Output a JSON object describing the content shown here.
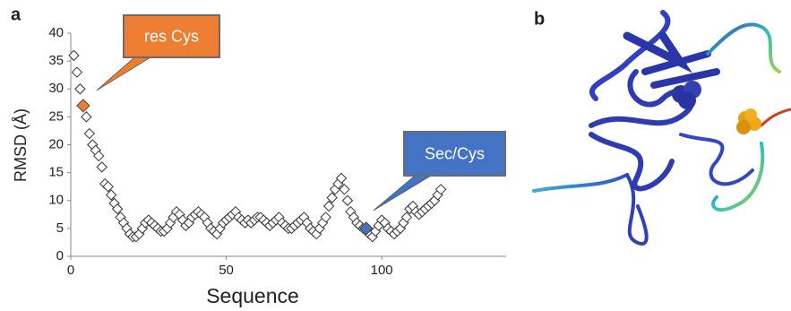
{
  "chart_data": {
    "type": "scatter",
    "y_label": "RMSD (Å)",
    "x_label": "Sequence",
    "x": [
      1,
      2,
      3,
      4,
      5,
      6,
      7,
      8,
      9,
      10,
      11,
      12,
      13,
      14,
      15,
      16,
      17,
      18,
      19,
      20,
      21,
      22,
      23,
      24,
      25,
      26,
      27,
      28,
      29,
      30,
      31,
      32,
      33,
      34,
      35,
      36,
      37,
      38,
      39,
      40,
      41,
      42,
      43,
      44,
      45,
      46,
      47,
      48,
      49,
      50,
      51,
      52,
      53,
      54,
      55,
      56,
      57,
      58,
      59,
      60,
      61,
      62,
      63,
      64,
      65,
      66,
      67,
      68,
      69,
      70,
      71,
      72,
      73,
      74,
      75,
      76,
      77,
      78,
      79,
      80,
      81,
      82,
      83,
      84,
      85,
      86,
      87,
      88,
      89,
      90,
      91,
      92,
      93,
      94,
      95,
      96,
      97,
      98,
      99,
      100,
      101,
      102,
      103,
      104,
      105,
      106,
      107,
      108,
      109,
      110,
      111,
      112,
      113,
      114,
      115,
      116,
      117,
      118,
      119
    ],
    "values": [
      36,
      33,
      30,
      27,
      25,
      22,
      20,
      19,
      18,
      16,
      13,
      12.5,
      11,
      9.5,
      8.5,
      7,
      6,
      5,
      4,
      3.5,
      3.5,
      4,
      5,
      6,
      6.5,
      6,
      5.5,
      5,
      4.5,
      4.5,
      5,
      6,
      7,
      8,
      7.5,
      6.5,
      5.5,
      6,
      7,
      7.5,
      8,
      7.5,
      7,
      6,
      5,
      4.5,
      4,
      5,
      6,
      6.5,
      7,
      7.5,
      8,
      7,
      6.5,
      6,
      6.5,
      6,
      6.5,
      7,
      7,
      6.5,
      6,
      5.5,
      6,
      6.5,
      7,
      6,
      5.5,
      5,
      5,
      5.5,
      6,
      6.5,
      7,
      6,
      5,
      4.5,
      4,
      5,
      6,
      7,
      9,
      10.5,
      12,
      13,
      14,
      12,
      10,
      8,
      7,
      6,
      5.5,
      5,
      5,
      4,
      3.5,
      4.5,
      5.5,
      6.5,
      6,
      5,
      4.5,
      4,
      4.5,
      5,
      6,
      7,
      8.5,
      9,
      8,
      7.5,
      8,
      8.5,
      9,
      9.5,
      10,
      11,
      12
    ],
    "marker_color": "#333333",
    "xlim": [
      0,
      140
    ],
    "xticks": [
      0,
      50,
      100
    ],
    "ylim": [
      0,
      40
    ],
    "yticks": [
      0,
      5,
      10,
      15,
      20,
      25,
      30,
      35,
      40
    ],
    "annotations": [
      {
        "text": "res Cys",
        "x": 4,
        "y": 27,
        "color": "#ed7d31"
      },
      {
        "text": "Sec/Cys",
        "x": 95,
        "y": 5,
        "color": "#4472c4"
      }
    ]
  },
  "panels": {
    "a": "a",
    "b": "b"
  }
}
